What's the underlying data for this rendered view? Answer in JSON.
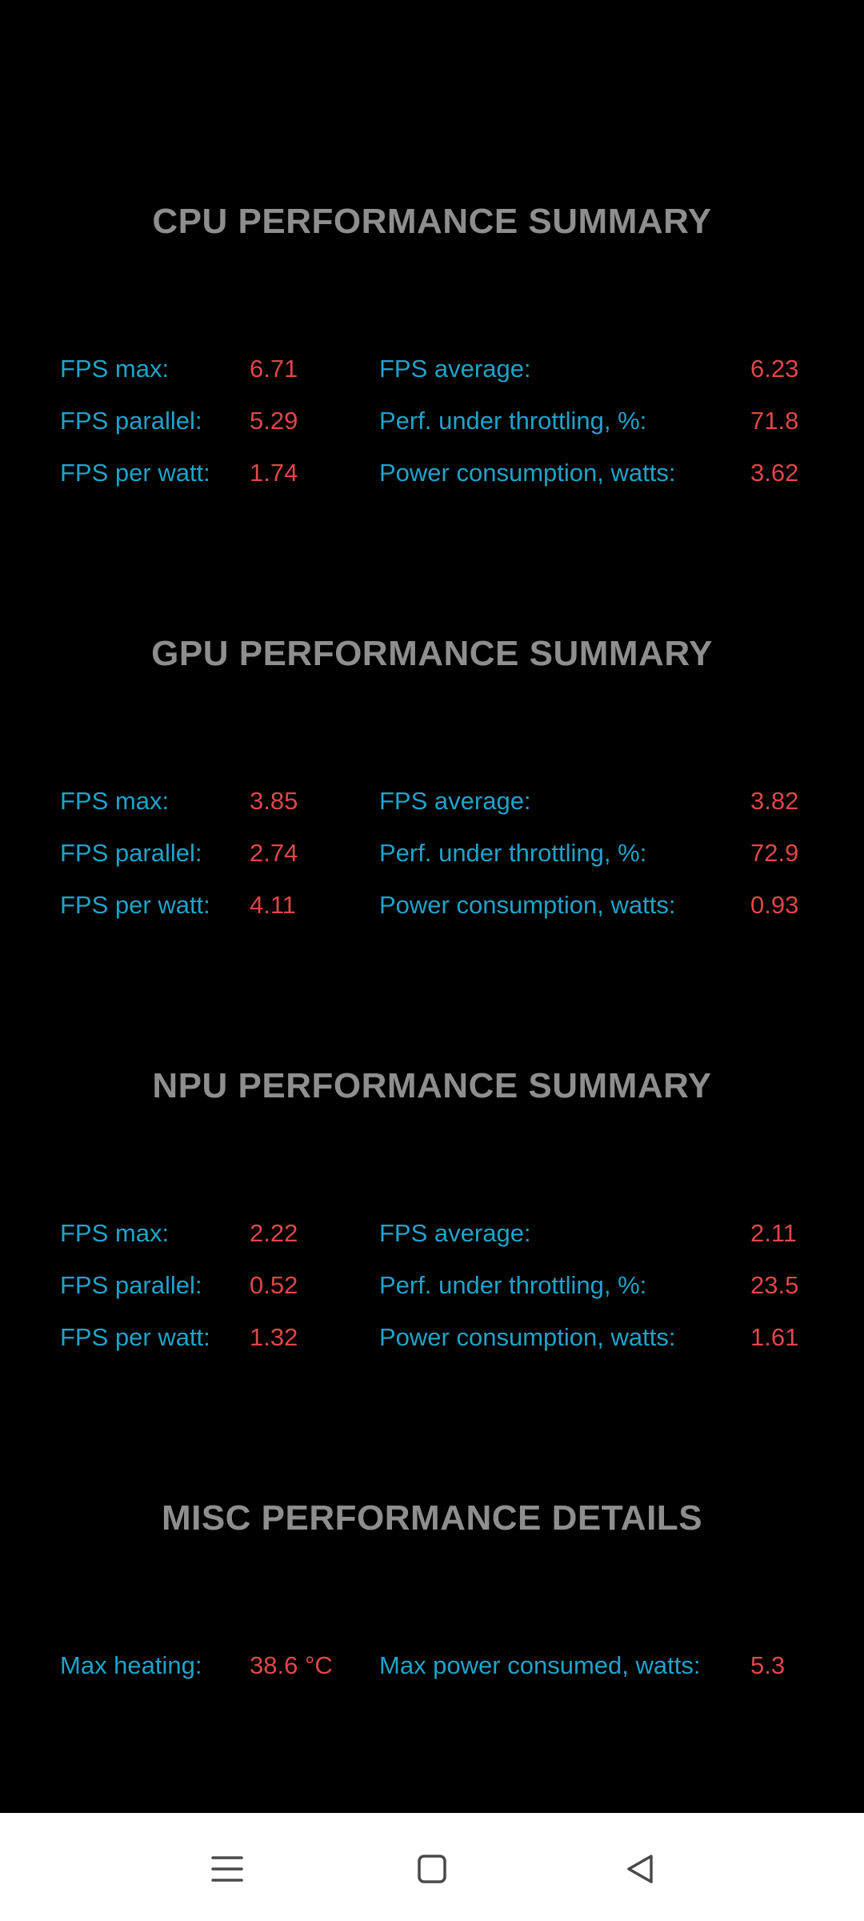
{
  "sections": [
    {
      "title": "CPU PERFORMANCE SUMMARY",
      "rows": [
        {
          "left_label": "FPS max:",
          "left_value": "6.71",
          "right_label": "FPS average:",
          "right_value": "6.23"
        },
        {
          "left_label": "FPS parallel:",
          "left_value": "5.29",
          "right_label": "Perf. under throttling, %:",
          "right_value": "71.8"
        },
        {
          "left_label": "FPS per watt:",
          "left_value": "1.74",
          "right_label": "Power consumption, watts:",
          "right_value": "3.62"
        }
      ]
    },
    {
      "title": "GPU PERFORMANCE SUMMARY",
      "rows": [
        {
          "left_label": "FPS max:",
          "left_value": "3.85",
          "right_label": "FPS average:",
          "right_value": "3.82"
        },
        {
          "left_label": "FPS parallel:",
          "left_value": "2.74",
          "right_label": "Perf. under throttling, %:",
          "right_value": "72.9"
        },
        {
          "left_label": "FPS per watt:",
          "left_value": "4.11",
          "right_label": "Power consumption, watts:",
          "right_value": "0.93"
        }
      ]
    },
    {
      "title": "NPU PERFORMANCE SUMMARY",
      "rows": [
        {
          "left_label": "FPS max:",
          "left_value": "2.22",
          "right_label": "FPS average:",
          "right_value": "2.11"
        },
        {
          "left_label": "FPS parallel:",
          "left_value": "0.52",
          "right_label": "Perf. under throttling, %:",
          "right_value": "23.5"
        },
        {
          "left_label": "FPS per watt:",
          "left_value": "1.32",
          "right_label": "Power consumption, watts:",
          "right_value": "1.61"
        }
      ]
    },
    {
      "title": "MISC PERFORMANCE DETAILS",
      "rows": [
        {
          "left_label": "Max heating:",
          "left_value": "38.6 °C",
          "right_label": "Max power consumed, watts:",
          "right_value": "5.3"
        }
      ]
    }
  ],
  "navbar": {
    "buttons": [
      "menu-icon",
      "home-square-icon",
      "back-triangle-icon"
    ]
  },
  "colors": {
    "background": "#000000",
    "title": "#8e8e8e",
    "label": "#1fa3c9",
    "value": "#e0464a",
    "navbar": "#ffffff"
  }
}
